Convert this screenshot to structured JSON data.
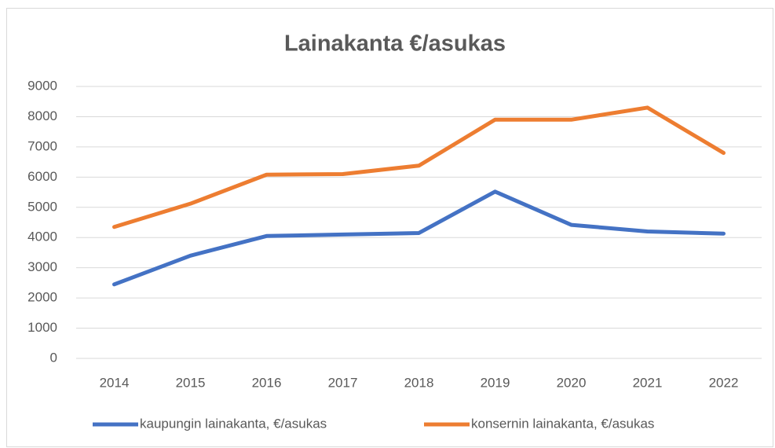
{
  "chart_data": {
    "type": "line",
    "title": "Lainakanta €/asukas",
    "categories": [
      "2014",
      "2015",
      "2016",
      "2017",
      "2018",
      "2019",
      "2020",
      "2021",
      "2022"
    ],
    "series": [
      {
        "name": "kaupungin lainakanta, €/asukas",
        "color": "#4472c4",
        "values": [
          2450,
          3400,
          4050,
          4100,
          4150,
          5520,
          4420,
          4200,
          4130
        ]
      },
      {
        "name": "konsernin lainakanta, €/asukas",
        "color": "#ed7d31",
        "values": [
          4350,
          5120,
          6080,
          6100,
          6380,
          7900,
          7900,
          8300,
          6800
        ]
      }
    ],
    "ylim": [
      0,
      9000
    ],
    "yticks": [
      0,
      1000,
      2000,
      3000,
      4000,
      5000,
      6000,
      7000,
      8000,
      9000
    ],
    "grid": true,
    "legend": "bottom"
  }
}
